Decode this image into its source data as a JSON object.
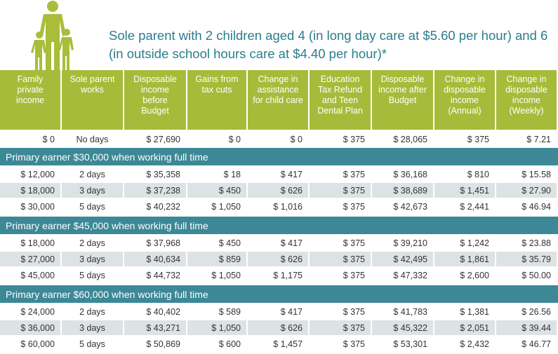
{
  "title": "Sole parent with 2 children aged 4 (in long day care at $5.60 per hour) and 6 (in outside school hours care at $4.40 per hour)*",
  "table": {
    "headers": [
      "Family private income",
      "Sole parent works",
      "Disposable income before Budget",
      "Gains from tax cuts",
      "Change in assistance for child care",
      "Education Tax Refund and Teen Dental Plan",
      "Disposable income after Budget",
      "Change in disposable income (Annual)",
      "Change in disposable income (Weekly)"
    ],
    "rows": [
      [
        "$ 0",
        "No days",
        "$ 27,690",
        "$ 0",
        "$ 0",
        "$ 375",
        "$ 28,065",
        "$ 375",
        "$ 7.21"
      ]
    ],
    "sections": [
      {
        "title": "Primary earner $30,000 when working full time",
        "rows": [
          [
            "$ 12,000",
            "2 days",
            "$ 35,358",
            "$ 18",
            "$ 417",
            "$ 375",
            "$ 36,168",
            "$ 810",
            "$ 15.58"
          ],
          [
            "$ 18,000",
            "3 days",
            "$ 37,238",
            "$ 450",
            "$ 626",
            "$ 375",
            "$ 38,689",
            "$ 1,451",
            "$ 27.90"
          ],
          [
            "$ 30,000",
            "5 days",
            "$ 40,232",
            "$ 1,050",
            "$ 1,016",
            "$ 375",
            "$ 42,673",
            "$ 2,441",
            "$ 46.94"
          ]
        ]
      },
      {
        "title": "Primary earner $45,000 when working full time",
        "rows": [
          [
            "$ 18,000",
            "2 days",
            "$ 37,968",
            "$ 450",
            "$ 417",
            "$ 375",
            "$ 39,210",
            "$ 1,242",
            "$ 23.88"
          ],
          [
            "$ 27,000",
            "3 days",
            "$ 40,634",
            "$ 859",
            "$ 626",
            "$ 375",
            "$ 42,495",
            "$ 1,861",
            "$ 35.79"
          ],
          [
            "$ 45,000",
            "5 days",
            "$ 44,732",
            "$ 1,050",
            "$ 1,175",
            "$ 375",
            "$ 47,332",
            "$ 2,600",
            "$ 50.00"
          ]
        ]
      },
      {
        "title": "Primary earner $60,000 when working full time",
        "rows": [
          [
            "$ 24,000",
            "2 days",
            "$ 40,402",
            "$ 589",
            "$ 417",
            "$ 375",
            "$ 41,783",
            "$ 1,381",
            "$ 26.56"
          ],
          [
            "$ 36,000",
            "3 days",
            "$ 43,271",
            "$ 1,050",
            "$ 626",
            "$ 375",
            "$ 45,322",
            "$ 2,051",
            "$ 39.44"
          ],
          [
            "$ 60,000",
            "5 days",
            "$ 50,869",
            "$ 600",
            "$ 1,457",
            "$ 375",
            "$ 53,301",
            "$ 2,432",
            "$ 46.77"
          ]
        ]
      }
    ]
  }
}
